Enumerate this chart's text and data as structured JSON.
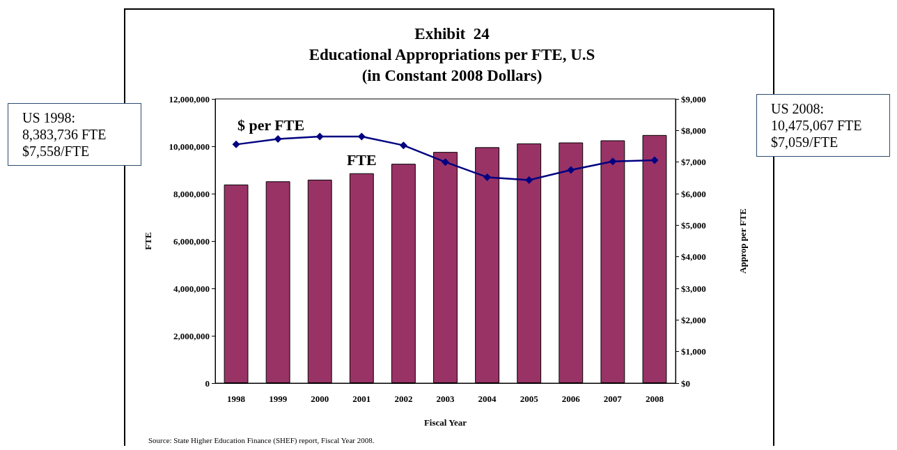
{
  "chart_data": {
    "type": "bar",
    "title": "Exhibit  24\nEducational Appropriations per FTE, U.S\n(in Constant 2008 Dollars)",
    "xlabel": "Fiscal Year",
    "ylabel": "FTE",
    "y2label": "Approp per FTE",
    "categories": [
      "1998",
      "1999",
      "2000",
      "2001",
      "2002",
      "2003",
      "2004",
      "2005",
      "2006",
      "2007",
      "2008"
    ],
    "series": [
      {
        "name": "FTE",
        "color": "#993366",
        "values": [
          8383736,
          8520000,
          8590000,
          8860000,
          9260000,
          9760000,
          9960000,
          10120000,
          10160000,
          10250000,
          10475067
        ]
      },
      {
        "name": "$ per FTE",
        "type": "line",
        "axis": "y2",
        "color": "#000080",
        "values": [
          7558,
          7730,
          7810,
          7810,
          7530,
          7000,
          6520,
          6430,
          6750,
          7020,
          7059
        ]
      }
    ],
    "ylim": [
      0,
      12000000
    ],
    "yticks": [
      0,
      {
        "value": 2000000,
        "label": "2,000,000"
      },
      {
        "value": 4000000,
        "label": "4,000,000"
      },
      {
        "value": 6000000,
        "label": "6,000,000"
      },
      {
        "value": 8000000,
        "label": "8,000,000"
      },
      {
        "value": 10000000,
        "label": "10,000,000"
      },
      {
        "value": 12000000,
        "label": "12,000,000"
      }
    ],
    "y2lim": [
      0,
      9000
    ],
    "y2ticks": [
      {
        "value": 0,
        "label": "$0"
      },
      {
        "value": 1000,
        "label": "$1,000"
      },
      {
        "value": 2000,
        "label": "$2,000"
      },
      {
        "value": 3000,
        "label": "$3,000"
      },
      {
        "value": 4000,
        "label": "$4,000"
      },
      {
        "value": 5000,
        "label": "$5,000"
      },
      {
        "value": 6000,
        "label": "$6,000"
      },
      {
        "value": 7000,
        "label": "$7,000"
      },
      {
        "value": 8000,
        "label": "$8,000"
      },
      {
        "value": 9000,
        "label": "$9,000"
      }
    ],
    "grid": false,
    "legend": false,
    "marker": "diamond",
    "line_style": "solid",
    "annotations": [
      "US 1998:\n8,383,736 FTE\n$7,558/FTE",
      "US 2008:\n10,475,067 FTE\n$7,059/FTE",
      "Source:  State Higher Education Finance (SHEF) report, Fiscal Year 2008."
    ]
  }
}
